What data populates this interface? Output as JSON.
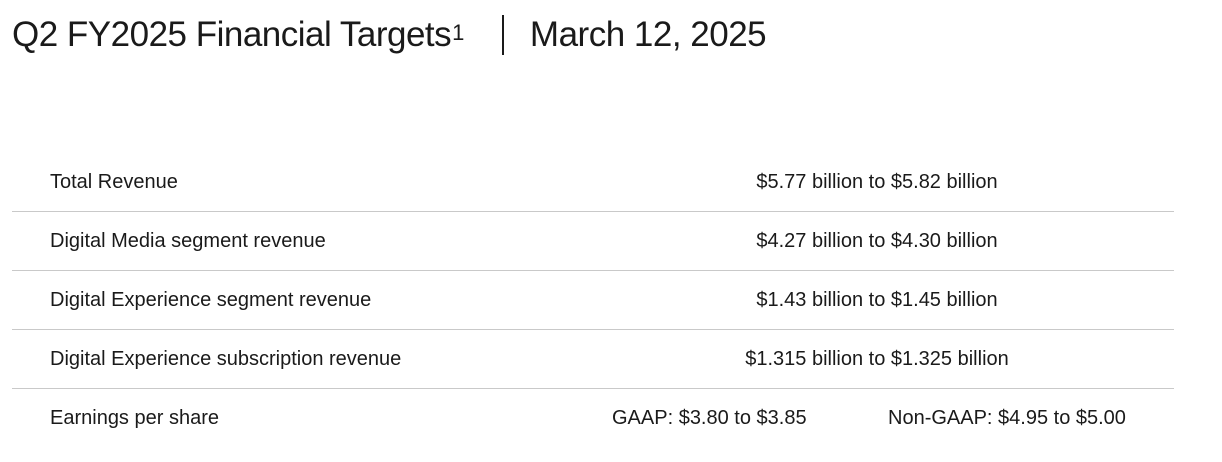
{
  "header": {
    "title": "Q2 FY2025 Financial Targets",
    "footnote_marker": "1",
    "date": "March 12, 2025"
  },
  "targets": [
    {
      "label": "Total Revenue",
      "value": "$5.77 billion to $5.82 billion"
    },
    {
      "label": "Digital Media segment revenue",
      "value": "$4.27 billion to $4.30 billion"
    },
    {
      "label": "Digital Experience segment revenue",
      "value": "$1.43 billion to $1.45 billion"
    },
    {
      "label": "Digital Experience subscription revenue",
      "value": "$1.315 billion to $1.325 billion"
    }
  ],
  "eps": {
    "label": "Earnings per share",
    "gaap": "GAAP: $3.80 to $3.85",
    "non_gaap": "Non-GAAP: $4.95 to $5.00"
  }
}
